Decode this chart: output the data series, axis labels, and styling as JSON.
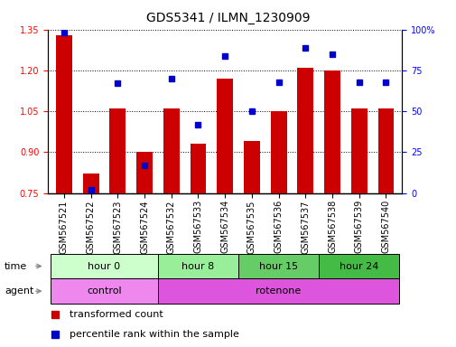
{
  "title": "GDS5341 / ILMN_1230909",
  "samples": [
    "GSM567521",
    "GSM567522",
    "GSM567523",
    "GSM567524",
    "GSM567532",
    "GSM567533",
    "GSM567534",
    "GSM567535",
    "GSM567536",
    "GSM567537",
    "GSM567538",
    "GSM567539",
    "GSM567540"
  ],
  "transformed_count": [
    1.33,
    0.82,
    1.06,
    0.9,
    1.06,
    0.93,
    1.17,
    0.94,
    1.05,
    1.21,
    1.2,
    1.06,
    1.06
  ],
  "percentile_rank": [
    98,
    2,
    67,
    17,
    70,
    42,
    84,
    50,
    68,
    89,
    85,
    68,
    68
  ],
  "ylim_left": [
    0.75,
    1.35
  ],
  "ylim_right": [
    0,
    100
  ],
  "yticks_left": [
    0.75,
    0.9,
    1.05,
    1.2,
    1.35
  ],
  "yticks_right": [
    0,
    25,
    50,
    75,
    100
  ],
  "bar_color": "#cc0000",
  "dot_color": "#0000cc",
  "time_groups": [
    {
      "label": "hour 0",
      "start": 0,
      "end": 4,
      "color": "#ccffcc"
    },
    {
      "label": "hour 8",
      "start": 4,
      "end": 7,
      "color": "#99ee99"
    },
    {
      "label": "hour 15",
      "start": 7,
      "end": 10,
      "color": "#66cc66"
    },
    {
      "label": "hour 24",
      "start": 10,
      "end": 13,
      "color": "#44bb44"
    }
  ],
  "agent_groups": [
    {
      "label": "control",
      "start": 0,
      "end": 4,
      "color": "#ee88ee"
    },
    {
      "label": "rotenone",
      "start": 4,
      "end": 13,
      "color": "#dd55dd"
    }
  ],
  "legend_items": [
    {
      "label": "transformed count",
      "color": "#cc0000",
      "marker": "s"
    },
    {
      "label": "percentile rank within the sample",
      "color": "#0000cc",
      "marker": "s"
    }
  ],
  "bar_width": 0.6,
  "dot_size": 5,
  "title_fontsize": 10,
  "tick_fontsize": 7,
  "label_fontsize": 8
}
